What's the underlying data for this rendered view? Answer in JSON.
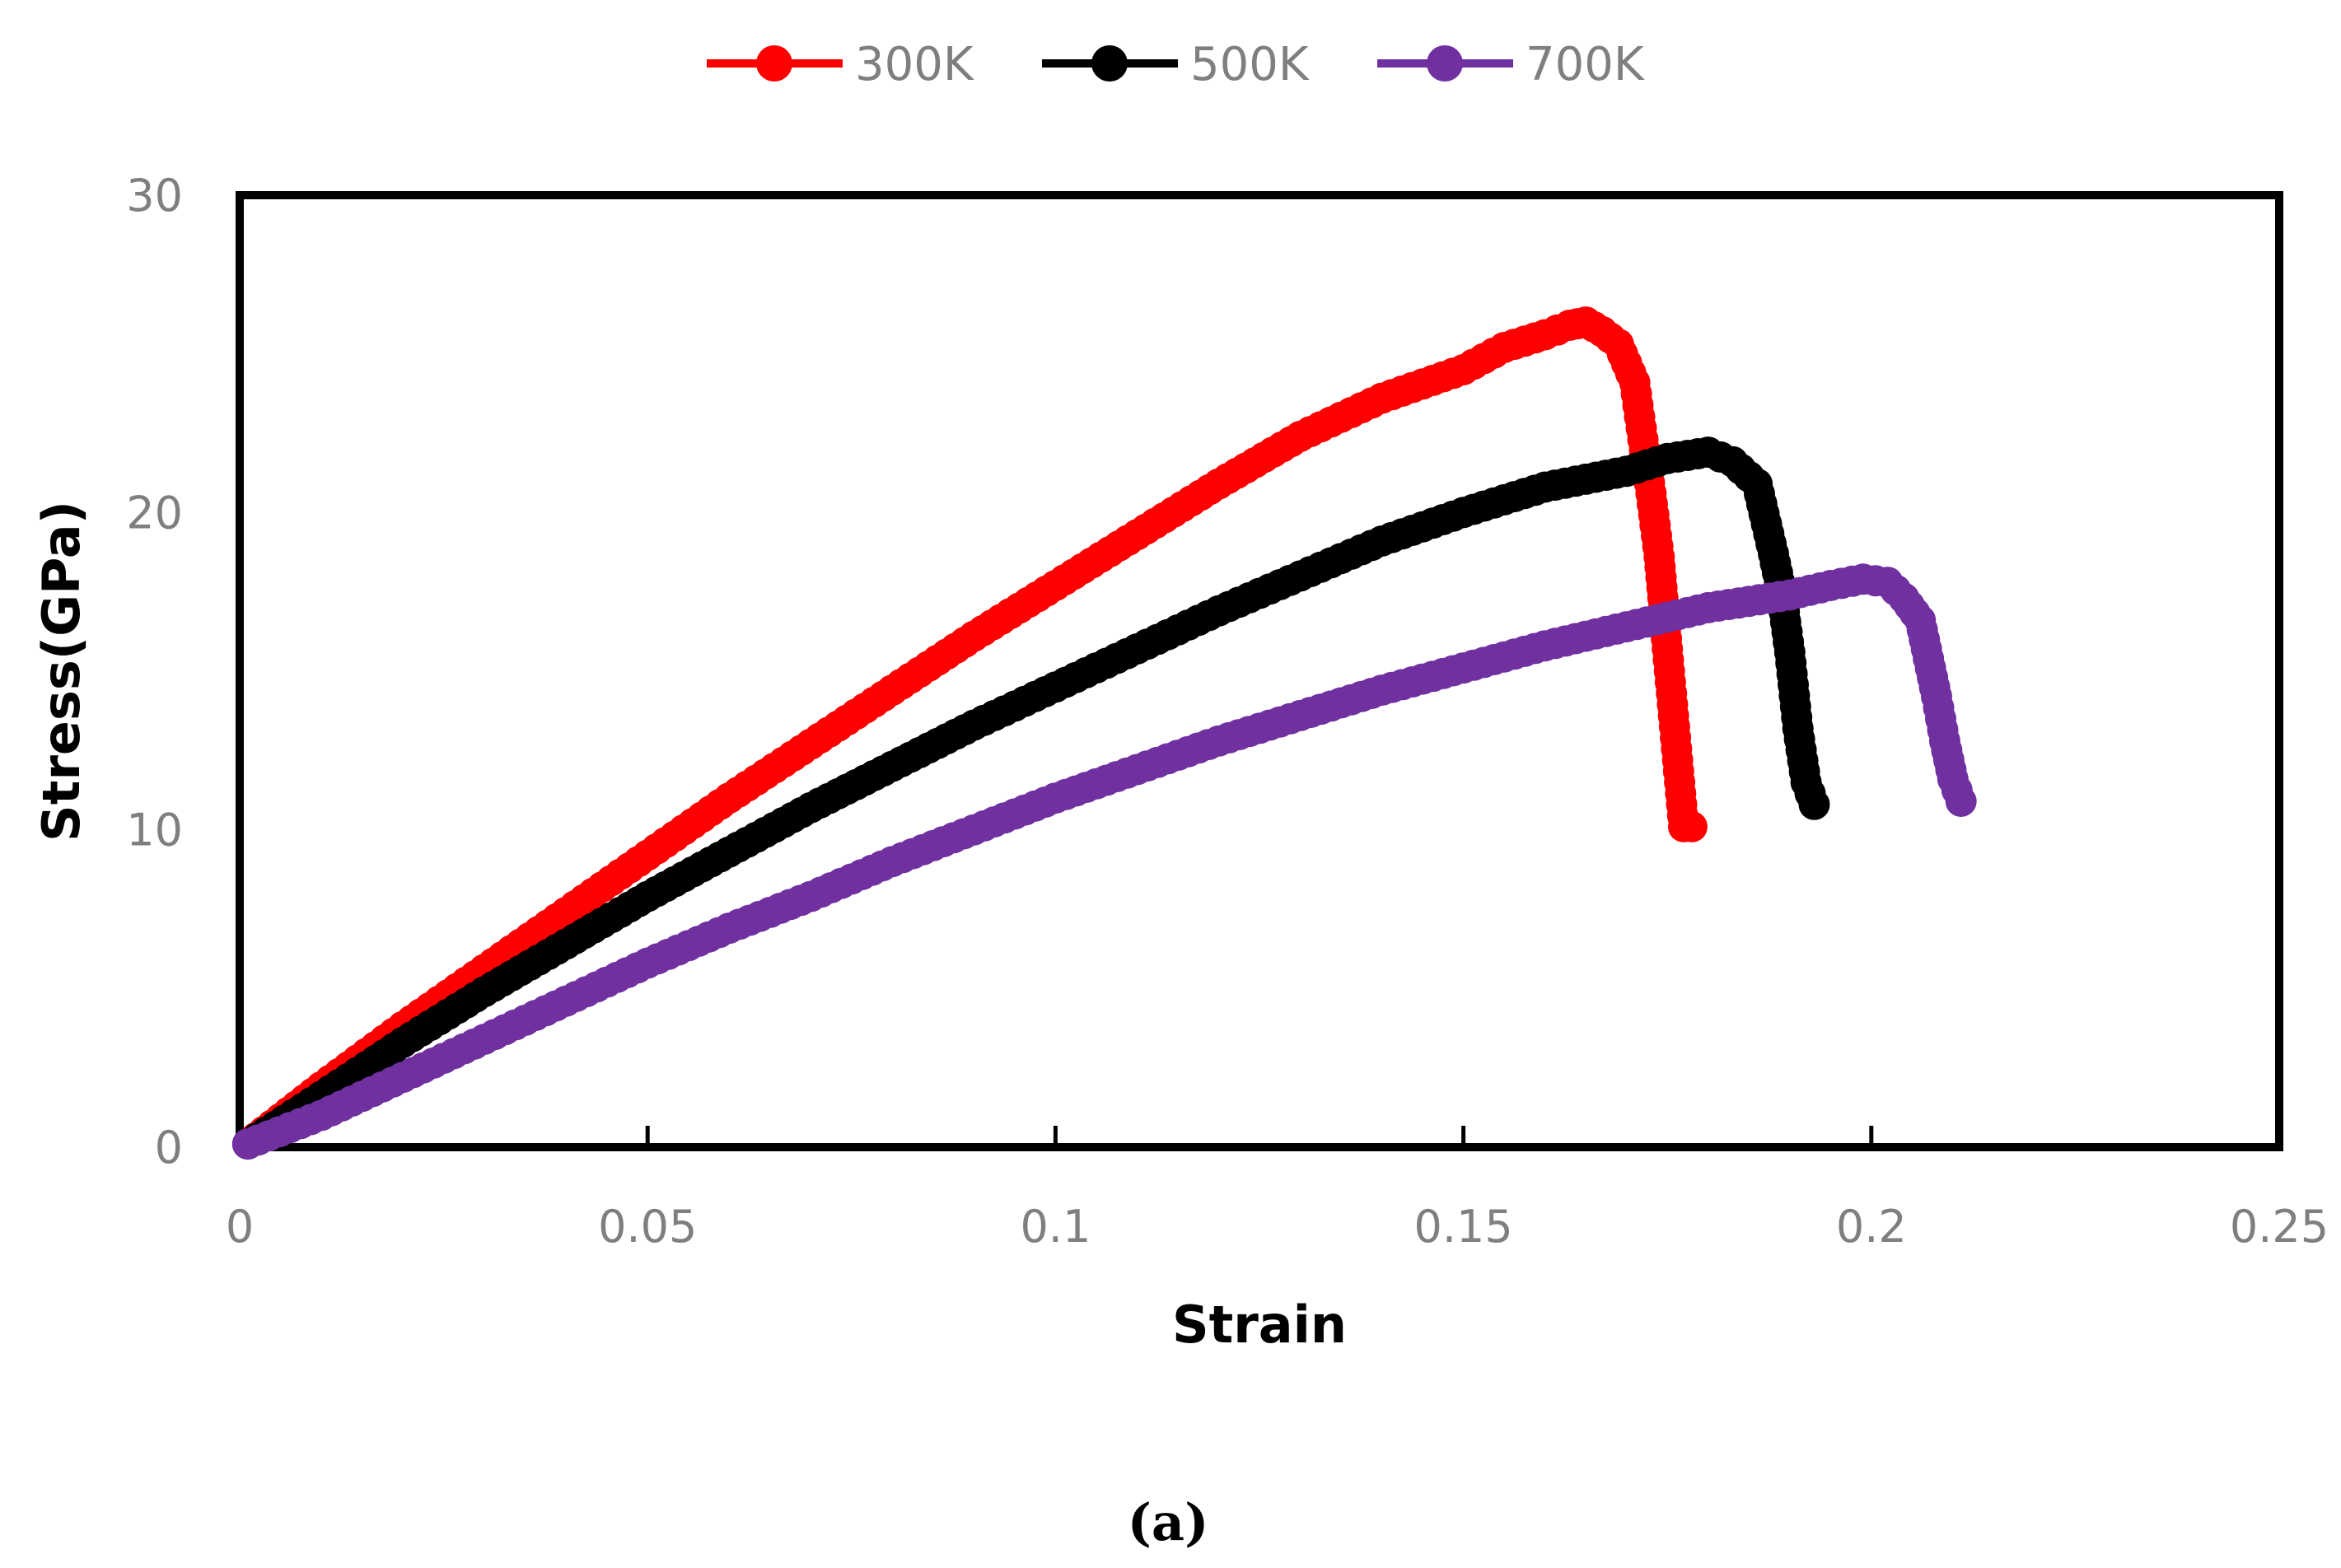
{
  "chart_data": {
    "type": "line",
    "title": "",
    "xlabel": "Strain",
    "ylabel": "Stress(GPa)",
    "caption": "(a)",
    "xlim": [
      0,
      0.25
    ],
    "ylim": [
      0,
      30
    ],
    "xticks": [
      0,
      0.05,
      0.1,
      0.15,
      0.2,
      0.25
    ],
    "xtick_labels": [
      "0",
      "0.05",
      "0.1",
      "0.15",
      "0.2",
      "0.25"
    ],
    "yticks": [
      0,
      10,
      20,
      30
    ],
    "ytick_labels": [
      "0",
      "10",
      "20",
      "30"
    ],
    "grid": false,
    "legend_position": "top-center",
    "series": [
      {
        "name": "300K",
        "color": "#ff0000",
        "x": [
          0.001,
          0.01,
          0.02,
          0.03,
          0.04,
          0.05,
          0.06,
          0.07,
          0.08,
          0.09,
          0.1,
          0.11,
          0.12,
          0.13,
          0.14,
          0.15,
          0.155,
          0.16,
          0.163,
          0.165,
          0.167,
          0.169,
          0.171,
          0.172,
          0.173,
          0.174,
          0.175,
          0.176,
          0.177,
          0.178
        ],
        "y": [
          0.1,
          1.9,
          3.8,
          5.6,
          7.4,
          9.2,
          11.0,
          12.7,
          14.4,
          16.1,
          17.7,
          19.3,
          20.9,
          22.4,
          23.6,
          24.5,
          25.2,
          25.6,
          25.9,
          26.0,
          25.7,
          25.3,
          24.1,
          22.3,
          20.6,
          18.6,
          15.7,
          12.9,
          10.1,
          10.1
        ]
      },
      {
        "name": "500K",
        "color": "#000000",
        "x": [
          0.001,
          0.01,
          0.02,
          0.03,
          0.04,
          0.05,
          0.06,
          0.07,
          0.08,
          0.09,
          0.1,
          0.11,
          0.12,
          0.13,
          0.14,
          0.15,
          0.16,
          0.17,
          0.175,
          0.18,
          0.183,
          0.186,
          0.188,
          0.189,
          0.19,
          0.191,
          0.192,
          0.193
        ],
        "y": [
          0.1,
          1.6,
          3.3,
          4.9,
          6.4,
          7.9,
          9.3,
          10.7,
          12.0,
          13.3,
          14.5,
          15.7,
          16.9,
          18.0,
          19.1,
          20.0,
          20.8,
          21.3,
          21.7,
          21.9,
          21.6,
          20.9,
          18.7,
          17.5,
          15.6,
          13.2,
          11.5,
          10.8
        ]
      },
      {
        "name": "700K",
        "color": "#7030a0",
        "x": [
          0.001,
          0.01,
          0.02,
          0.03,
          0.04,
          0.05,
          0.06,
          0.07,
          0.08,
          0.09,
          0.1,
          0.11,
          0.12,
          0.13,
          0.14,
          0.15,
          0.16,
          0.17,
          0.18,
          0.19,
          0.195,
          0.199,
          0.202,
          0.204,
          0.206,
          0.207,
          0.208,
          0.209,
          0.21,
          0.211
        ],
        "y": [
          0.1,
          1.0,
          2.2,
          3.4,
          4.6,
          5.8,
          6.9,
          7.9,
          9.0,
          10.0,
          11.0,
          11.9,
          12.8,
          13.6,
          14.4,
          15.1,
          15.8,
          16.4,
          17.0,
          17.4,
          17.7,
          17.9,
          17.8,
          17.3,
          16.6,
          15.4,
          14.2,
          12.8,
          11.6,
          10.9
        ]
      }
    ]
  }
}
